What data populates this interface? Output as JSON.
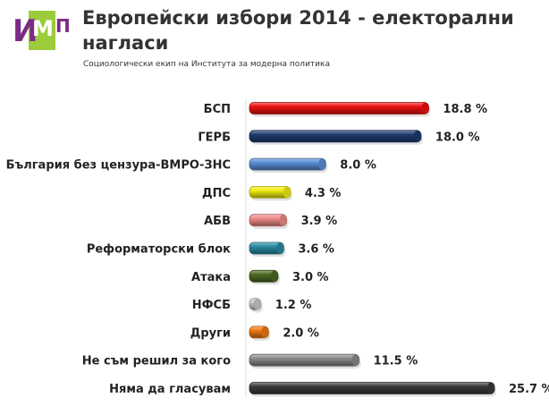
{
  "header": {
    "title": "Европейски избори 2014 - електорални нагласи",
    "subtitle": "Социологически екип на Института за модерна политика",
    "logo_text": "ИМП"
  },
  "chart_data": {
    "type": "bar",
    "orientation": "horizontal",
    "title": "Европейски избори 2014 - електорални нагласи",
    "subtitle": "Социологически екип на Института за модерна политика",
    "categories": [
      "БСП",
      "ГЕРБ",
      "България без цензура-ВМРО-ЗНС",
      "ДПС",
      "АБВ",
      "Реформаторски блок",
      "Атака",
      "НФСБ",
      "Други",
      "Не съм решил за кого",
      "Няма да гласувам"
    ],
    "values": [
      18.8,
      18.0,
      8.0,
      4.3,
      3.9,
      3.6,
      3.0,
      1.2,
      2.0,
      11.5,
      25.7
    ],
    "value_labels": [
      "18.8 %",
      "18.0 %",
      "8.0 %",
      "4.3 %",
      "3.9 %",
      "3.6 %",
      "3.0 %",
      "1.2 %",
      "2.0 %",
      "11.5 %",
      "25.7 %"
    ],
    "colors": [
      "#ee1111",
      "#1f3a6e",
      "#5b8ed6",
      "#f0ee10",
      "#f08a8a",
      "#2a8aa2",
      "#4c6a22",
      "#c9c9c9",
      "#ee7a12",
      "#8a8a8a",
      "#3a3a3a"
    ],
    "xlim": [
      0,
      26
    ],
    "grid": false,
    "legend": "none",
    "bar_style": "3d-cylinder"
  }
}
